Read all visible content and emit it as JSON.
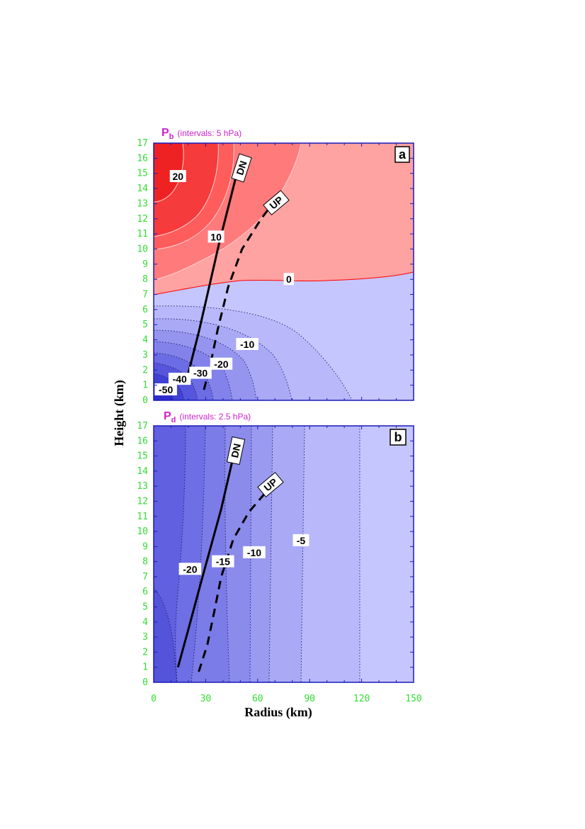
{
  "chart_data": [
    {
      "type": "contour",
      "panel": "a",
      "title_var": "P",
      "title_sub": "b",
      "title_note": "(intervals: 5 hPa)",
      "xlabel": "Radius (km)",
      "ylabel": "Height (km)",
      "xlim": [
        0,
        150
      ],
      "ylim": [
        0,
        17
      ],
      "xticks": [
        "0",
        "30",
        "60",
        "90",
        "120",
        "150"
      ],
      "yticks": [
        "0",
        "1",
        "2",
        "3",
        "4",
        "5",
        "6",
        "7",
        "8",
        "9",
        "10",
        "11",
        "12",
        "13",
        "14",
        "15",
        "16",
        "17"
      ],
      "contour_interval": 5,
      "contour_labels": [
        {
          "text": "20",
          "x": 14,
          "y": 14.8
        },
        {
          "text": "10",
          "x": 36,
          "y": 10.8
        },
        {
          "text": "0",
          "x": 78,
          "y": 8.0
        },
        {
          "text": "-10",
          "x": 54,
          "y": 3.7
        },
        {
          "text": "-20",
          "x": 39,
          "y": 2.4
        },
        {
          "text": "-30",
          "x": 27,
          "y": 1.8
        },
        {
          "text": "-40",
          "x": 15,
          "y": 1.4
        },
        {
          "text": "-50",
          "x": 7,
          "y": 0.7
        }
      ],
      "trajectories": [
        {
          "name": "DN",
          "style": "solid",
          "x": [
            20,
            26,
            32,
            38,
            44,
            48
          ],
          "y": [
            1.8,
            4.5,
            7.5,
            10.5,
            13.2,
            15.0
          ]
        },
        {
          "name": "UP",
          "style": "dashed",
          "x": [
            29,
            33,
            37,
            43,
            51,
            62,
            70
          ],
          "y": [
            0.7,
            2.5,
            4.7,
            7.5,
            10.0,
            12.0,
            13.2
          ]
        }
      ]
    },
    {
      "type": "contour",
      "panel": "b",
      "title_var": "P",
      "title_sub": "d",
      "title_note": "(intervals: 2.5 hPa)",
      "xlabel": "Radius (km)",
      "ylabel": "Height (km)",
      "xlim": [
        0,
        150
      ],
      "ylim": [
        0,
        17
      ],
      "xticks": [
        "0",
        "30",
        "60",
        "90",
        "120",
        "150"
      ],
      "yticks": [
        "0",
        "1",
        "2",
        "3",
        "4",
        "5",
        "6",
        "7",
        "8",
        "9",
        "10",
        "11",
        "12",
        "13",
        "14",
        "15",
        "16",
        "17"
      ],
      "contour_interval": 2.5,
      "contour_labels": [
        {
          "text": "-20",
          "x": 21,
          "y": 7.5
        },
        {
          "text": "-15",
          "x": 40,
          "y": 8.0
        },
        {
          "text": "-10",
          "x": 58,
          "y": 8.6
        },
        {
          "text": "-5",
          "x": 85,
          "y": 9.4
        }
      ],
      "trajectories": [
        {
          "name": "DN",
          "style": "solid",
          "x": [
            14,
            20,
            27,
            33,
            39,
            44,
            47
          ],
          "y": [
            1.0,
            3.5,
            6.5,
            9.0,
            11.5,
            14.0,
            15.5
          ]
        },
        {
          "name": "UP",
          "style": "dashed",
          "x": [
            26,
            31,
            35,
            39,
            46,
            55,
            64,
            72
          ],
          "y": [
            0.7,
            2.5,
            4.7,
            7.0,
            9.5,
            11.3,
            12.5,
            13.3
          ]
        }
      ]
    }
  ],
  "colors": {
    "axis_frame": "#1a1ab8",
    "tick_labels": "#33dd33",
    "title_magenta": "#cc22cc",
    "zero_line": "#ff0000"
  }
}
